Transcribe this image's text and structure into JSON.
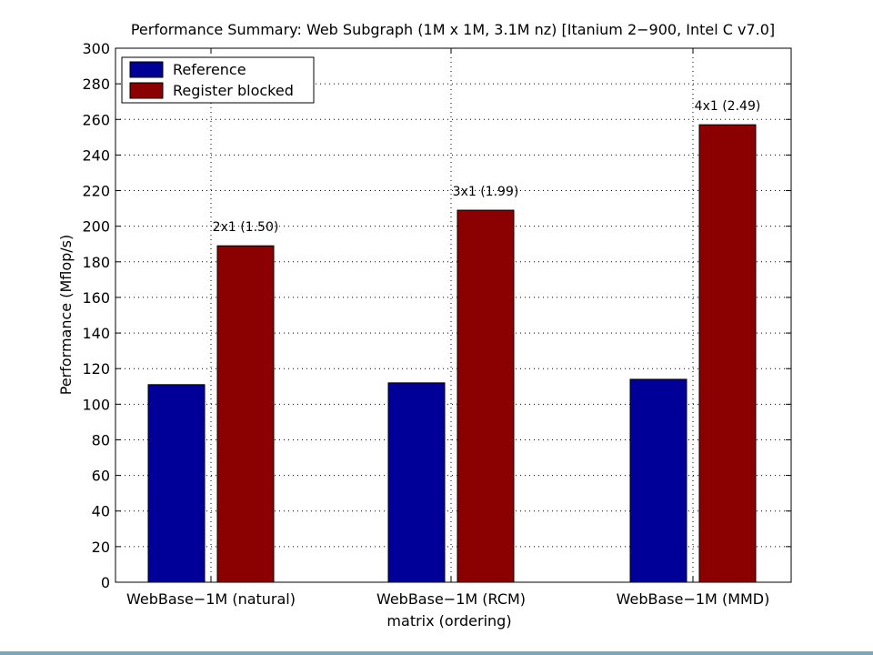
{
  "chart_data": {
    "type": "bar",
    "title": "Performance Summary: Web Subgraph (1M x 1M, 3.1M nz) [Itanium 2−900, Intel C v7.0]",
    "xlabel": "matrix (ordering)",
    "ylabel": "Performance (Mflop/s)",
    "ylim": [
      0,
      300
    ],
    "yticks": [
      0,
      20,
      40,
      60,
      80,
      100,
      120,
      140,
      160,
      180,
      200,
      220,
      240,
      260,
      280,
      300
    ],
    "categories": [
      "WebBase−1M (natural)",
      "WebBase−1M (RCM)",
      "WebBase−1M (MMD)"
    ],
    "series": [
      {
        "name": "Reference",
        "color": "#000099",
        "values": [
          111,
          112,
          114
        ]
      },
      {
        "name": "Register blocked",
        "color": "#8b0000",
        "values": [
          189,
          209,
          257
        ]
      }
    ],
    "annotations": [
      "2x1 (1.50)",
      "3x1 (1.99)",
      "4x1 (2.49)"
    ],
    "grid": true,
    "legend_position": "top-left"
  }
}
